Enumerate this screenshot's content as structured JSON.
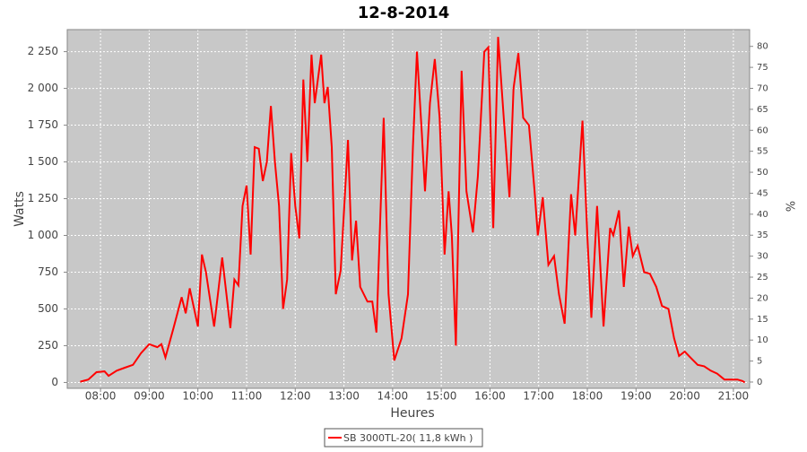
{
  "chart_data": {
    "type": "line",
    "title": "12-8-2014",
    "y_label": "Watts",
    "y2_label": "%",
    "x_label": "Heures",
    "grid": true,
    "legend": "bottom",
    "xlim": [
      "07:19",
      "21:20"
    ],
    "xticks": [
      "08:00",
      "09:00",
      "10:00",
      "11:00",
      "12:00",
      "13:00",
      "14:00",
      "15:00",
      "16:00",
      "17:00",
      "18:00",
      "19:00",
      "20:00",
      "21:00"
    ],
    "ylim": [
      -40,
      2400
    ],
    "yticks": [
      0,
      250,
      500,
      750,
      {
        "value": 1000,
        "label": "1 000"
      },
      {
        "value": 1250,
        "label": "1 250"
      },
      {
        "value": 1500,
        "label": "1 500"
      },
      {
        "value": 1750,
        "label": "1 750"
      },
      {
        "value": 2000,
        "label": "2 000"
      },
      {
        "value": 2250,
        "label": "2 250"
      }
    ],
    "y2lim": [
      -1.5,
      84
    ],
    "y2ticks": [
      0,
      5,
      10,
      15,
      20,
      25,
      30,
      35,
      40,
      45,
      50,
      55,
      60,
      65,
      70,
      75,
      80
    ],
    "x": [
      "07:35",
      "07:45",
      "07:55",
      "08:05",
      "08:10",
      "08:20",
      "08:30",
      "08:40",
      "08:50",
      "09:00",
      "09:10",
      "09:15",
      "09:20",
      "09:30",
      "09:40",
      "09:45",
      "09:50",
      "10:00",
      "10:05",
      "10:10",
      "10:20",
      "10:30",
      "10:40",
      "10:45",
      "10:50",
      "10:55",
      "11:00",
      "11:05",
      "11:10",
      "11:15",
      "11:20",
      "11:25",
      "11:30",
      "11:35",
      "11:40",
      "11:45",
      "11:50",
      "11:55",
      "12:00",
      "12:05",
      "12:10",
      "12:15",
      "12:20",
      "12:24",
      "12:32",
      "12:36",
      "12:40",
      "12:45",
      "12:50",
      "12:56",
      "13:05",
      "13:10",
      "13:15",
      "13:20",
      "13:29",
      "13:35",
      "13:40",
      "13:49",
      "13:55",
      "14:02",
      "14:11",
      "14:19",
      "14:25",
      "14:30",
      "14:36",
      "14:40",
      "14:46",
      "14:52",
      "14:58",
      "15:04",
      "15:09",
      "15:13",
      "15:18",
      "15:25",
      "15:31",
      "15:39",
      "15:45",
      "15:53",
      "15:58",
      "16:04",
      "16:10",
      "16:17",
      "16:24",
      "16:29",
      "16:35",
      "16:41",
      "16:48",
      "16:55",
      "16:59",
      "17:05",
      "17:12",
      "17:19",
      "17:25",
      "17:32",
      "17:40",
      "17:45",
      "17:54",
      "18:00",
      "18:05",
      "18:12",
      "18:20",
      "18:28",
      "18:32",
      "18:39",
      "18:45",
      "18:51",
      "18:56",
      "19:02",
      "19:10",
      "19:17",
      "19:25",
      "19:32",
      "19:40",
      "19:47",
      "19:53",
      "20:00",
      "20:07",
      "20:16",
      "20:24",
      "20:32",
      "20:40",
      "20:49",
      "20:57",
      "21:05",
      "21:11",
      "21:14"
    ],
    "series": [
      {
        "name": "SB 3000TL-20( 11,8 kWh )",
        "color": "#ff0000",
        "values": [
          5,
          20,
          70,
          75,
          45,
          80,
          100,
          120,
          200,
          260,
          240,
          260,
          170,
          370,
          580,
          470,
          640,
          380,
          870,
          750,
          380,
          850,
          370,
          700,
          660,
          1200,
          1340,
          870,
          1600,
          1590,
          1370,
          1500,
          1880,
          1500,
          1200,
          500,
          700,
          1560,
          1200,
          980,
          2060,
          1500,
          2230,
          1900,
          2230,
          1900,
          2010,
          1600,
          600,
          760,
          1650,
          830,
          1100,
          650,
          550,
          550,
          340,
          1800,
          600,
          150,
          300,
          600,
          1600,
          2250,
          1700,
          1300,
          1900,
          2200,
          1800,
          870,
          1300,
          1000,
          250,
          2120,
          1300,
          1020,
          1400,
          2250,
          2280,
          1050,
          2350,
          1800,
          1260,
          2000,
          2240,
          1800,
          1750,
          1300,
          1000,
          1260,
          800,
          860,
          600,
          400,
          1280,
          1000,
          1780,
          1000,
          440,
          1200,
          380,
          1050,
          1000,
          1170,
          650,
          1060,
          860,
          930,
          750,
          740,
          650,
          520,
          500,
          300,
          180,
          210,
          170,
          120,
          110,
          80,
          60,
          20,
          20,
          20,
          10,
          0
        ]
      }
    ]
  }
}
